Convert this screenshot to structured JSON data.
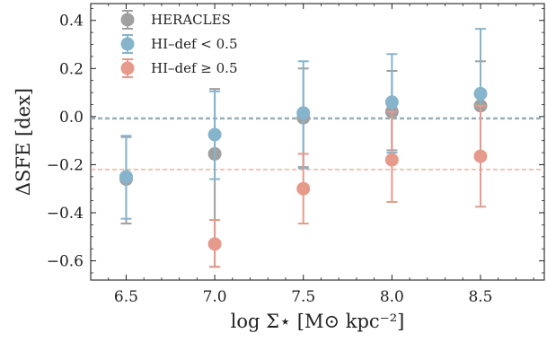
{
  "chart_data": {
    "type": "scatter",
    "xlabel": "log Σ⋆ [M⊙ kpc⁻²]",
    "ylabel": "ΔSFE [dex]",
    "xlim": [
      6.3,
      8.86
    ],
    "ylim": [
      -0.68,
      0.47
    ],
    "xticks": [
      "6.5",
      "7.0",
      "7.5",
      "8.0",
      "8.5"
    ],
    "yticks": [
      "0.4",
      "0.2",
      "0.0",
      "−0.2",
      "−0.4",
      "−0.6"
    ],
    "grid": false,
    "legend_placement": "top-left",
    "series": [
      {
        "name": "HERACLES",
        "color": "#a0a0a0",
        "x": [
          6.5,
          7.0,
          7.5,
          8.0,
          8.5
        ],
        "y": [
          -0.26,
          -0.155,
          -0.005,
          0.02,
          0.045
        ],
        "yerr_low": [
          -0.445,
          -0.625,
          -0.21,
          -0.14,
          -0.16
        ],
        "yerr_high": [
          -0.085,
          0.115,
          0.2,
          0.19,
          0.23
        ]
      },
      {
        "name": "HI–def < 0.5",
        "color": "#86b4cc",
        "x": [
          6.5,
          7.0,
          7.5,
          8.0,
          8.5
        ],
        "y": [
          -0.25,
          -0.075,
          0.015,
          0.06,
          0.095
        ],
        "yerr_low": [
          -0.425,
          -0.26,
          -0.215,
          -0.15,
          -0.17
        ],
        "yerr_high": [
          -0.08,
          0.105,
          0.23,
          0.26,
          0.365
        ]
      },
      {
        "name": "HI–def ≥ 0.5",
        "color": "#e59a8c",
        "x": [
          7.0,
          7.5,
          8.0,
          8.5
        ],
        "y": [
          -0.53,
          -0.3,
          -0.18,
          -0.165
        ],
        "yerr_low": [
          -0.625,
          -0.445,
          -0.355,
          -0.375
        ],
        "yerr_high": [
          -0.43,
          -0.155,
          0.02,
          0.045
        ]
      }
    ],
    "reference_lines": [
      {
        "y": -0.01,
        "color": "#a0a0a0",
        "style": "dashed"
      },
      {
        "y": -0.005,
        "color": "#86b4cc",
        "style": "dashed"
      },
      {
        "y": -0.22,
        "color": "#e59a8c",
        "style": "dashed"
      }
    ]
  }
}
